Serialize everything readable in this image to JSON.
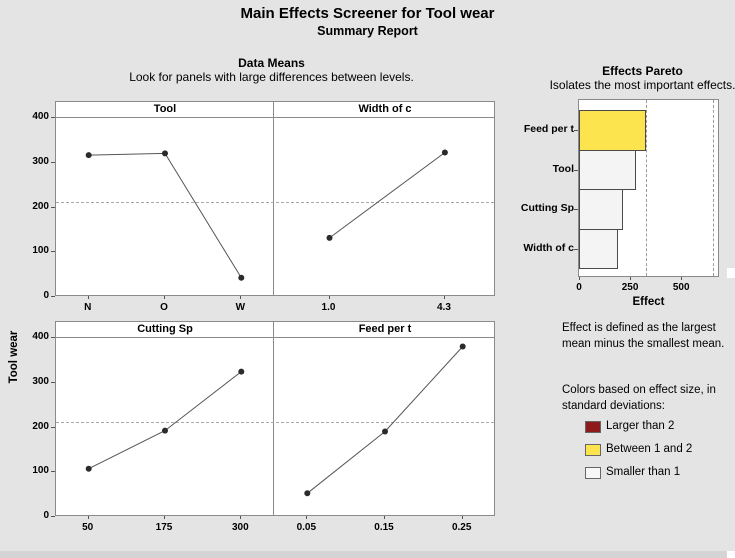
{
  "title": "Main Effects Screener for Tool wear",
  "subtitle": "Summary Report",
  "data_means": {
    "heading": "Data Means",
    "caption": "Look for panels with large differences between levels.",
    "y_axis_label": "Tool wear"
  },
  "pareto": {
    "heading": "Effects Pareto",
    "caption": "Isolates the most important effects.",
    "x_axis_label": "Effect",
    "note": [
      "Effect is defined as the largest",
      "mean minus the smallest mean."
    ]
  },
  "legend": {
    "heading": [
      "Colors based on effect size, in",
      "standard deviations:"
    ],
    "items": [
      {
        "label": "Larger than 2",
        "color": "#8e1a1c"
      },
      {
        "label": "Between 1 and 2",
        "color": "#fbe44d"
      },
      {
        "label": "Smaller than 1",
        "color": "#f7f7f7"
      }
    ]
  },
  "chart_data": [
    {
      "type": "line",
      "title": "Data Means",
      "ylabel": "Tool wear",
      "ylim": [
        0,
        400
      ],
      "yticks": [
        0,
        100,
        200,
        300,
        400
      ],
      "grand_mean_line": 212,
      "panels": [
        {
          "title": "Tool",
          "categories": [
            "N",
            "O",
            "W"
          ],
          "values": [
            317,
            321,
            43
          ]
        },
        {
          "title": "Width of c",
          "categories": [
            "1.0",
            "4.3"
          ],
          "values": [
            132,
            323
          ]
        },
        {
          "title": "Cutting Sp",
          "categories": [
            "50",
            "175",
            "300"
          ],
          "values": [
            108,
            193,
            325
          ]
        },
        {
          "title": "Feed per t",
          "categories": [
            "0.05",
            "0.15",
            "0.25"
          ],
          "values": [
            53,
            191,
            381
          ]
        }
      ]
    },
    {
      "type": "bar",
      "title": "Effects Pareto",
      "orientation": "horizontal",
      "categories": [
        "Feed per t",
        "Tool",
        "Cutting Sp",
        "Width of c"
      ],
      "values": [
        328,
        278,
        217,
        191
      ],
      "bar_colors": [
        "#fbe44d",
        "#f4f4f4",
        "#f4f4f4",
        "#f4f4f4"
      ],
      "xlabel": "Effect",
      "xlim": [
        0,
        690
      ],
      "xticks": [
        0,
        250,
        500
      ],
      "reference_lines": [
        327,
        654
      ]
    }
  ]
}
